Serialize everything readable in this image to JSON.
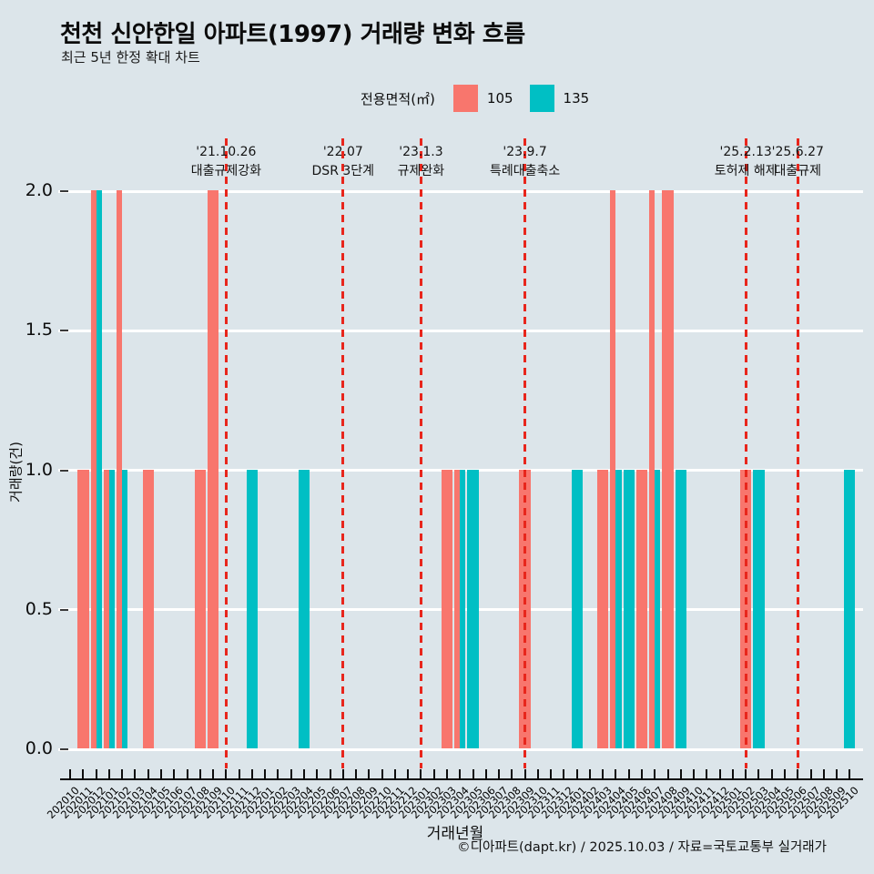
{
  "header": {
    "title": "천천 신안한일 아파트(1997) 거래량 변화 흐름",
    "subtitle": "최근 5년 한정 확대 차트"
  },
  "legend": {
    "title": "전용면적(㎡)",
    "items": [
      {
        "label": "105",
        "color": "#F8766D"
      },
      {
        "label": "135",
        "color": "#00BFC4"
      }
    ]
  },
  "footer": {
    "credit": "©디아파트(dapt.kr) / 2025.10.03 / 자료=국토교통부 실거래가"
  },
  "chart_data": {
    "type": "bar",
    "title": "천천 신안한일 아파트(1997) 거래량 변화 흐름",
    "xlabel": "거래년월",
    "ylabel": "거래량(건)",
    "ylim": [
      0,
      2.0
    ],
    "yticks": [
      "2.0",
      "1.5",
      "1.0",
      "0.5",
      "0.0"
    ],
    "ytick_values": [
      2.0,
      1.5,
      1.0,
      0.5,
      0.0
    ],
    "grid": "white major gridlines, legend top center",
    "categories": [
      "202010",
      "202011",
      "202012",
      "202101",
      "202102",
      "202103",
      "202104",
      "202105",
      "202106",
      "202107",
      "202108",
      "202109",
      "202110",
      "202111",
      "202112",
      "202201",
      "202202",
      "202203",
      "202204",
      "202205",
      "202206",
      "202207",
      "202208",
      "202209",
      "202210",
      "202211",
      "202212",
      "202301",
      "202302",
      "202303",
      "202304",
      "202305",
      "202306",
      "202307",
      "202308",
      "202309",
      "202310",
      "202311",
      "202312",
      "202401",
      "202402",
      "202403",
      "202404",
      "202405",
      "202406",
      "202407",
      "202408",
      "202409",
      "202410",
      "202411",
      "202412",
      "202501",
      "202502",
      "202503",
      "202504",
      "202505",
      "202506",
      "202507",
      "202508",
      "202509",
      "202510"
    ],
    "series": [
      {
        "name": "105",
        "color": "#F8766D",
        "values": [
          0,
          1,
          2,
          1,
          2,
          0,
          1,
          0,
          0,
          0,
          1,
          2,
          0,
          0,
          0,
          0,
          0,
          0,
          0,
          0,
          0,
          0,
          0,
          0,
          0,
          0,
          0,
          0,
          0,
          1,
          1,
          0,
          0,
          0,
          0,
          1,
          0,
          0,
          0,
          0,
          0,
          1,
          2,
          0,
          1,
          2,
          2,
          0,
          0,
          0,
          0,
          0,
          1,
          0,
          0,
          0,
          0,
          0,
          0,
          0,
          0
        ]
      },
      {
        "name": "135",
        "color": "#00BFC4",
        "values": [
          0,
          0,
          2,
          1,
          1,
          0,
          0,
          0,
          0,
          0,
          0,
          0,
          0,
          0,
          1,
          0,
          0,
          0,
          1,
          0,
          0,
          0,
          0,
          0,
          0,
          0,
          0,
          0,
          0,
          0,
          1,
          1,
          0,
          0,
          0,
          0,
          0,
          0,
          0,
          1,
          0,
          0,
          1,
          1,
          0,
          1,
          0,
          1,
          0,
          0,
          0,
          0,
          0,
          1,
          0,
          0,
          0,
          0,
          0,
          0,
          1
        ]
      }
    ],
    "annotations": [
      {
        "month": "202110",
        "date": "'21.10.26",
        "label": "대출규제강화",
        "line_color": "#e8261c"
      },
      {
        "month": "202207",
        "date": "'22.07",
        "label": "DSR 3단계",
        "line_color": "#e8261c"
      },
      {
        "month": "202301",
        "date": "'23.1.3",
        "label": "규제완화",
        "line_color": "#e8261c"
      },
      {
        "month": "202309",
        "date": "'23.9.7",
        "label": "특례대출축소",
        "line_color": "#e8261c"
      },
      {
        "month": "202502",
        "date": "'25.2.13",
        "label": "토허제 해제",
        "line_color": "#e8261c"
      },
      {
        "month": "202506",
        "date": "'25.6.27",
        "label": "대출규제",
        "line_color": "#e8261c"
      }
    ]
  }
}
